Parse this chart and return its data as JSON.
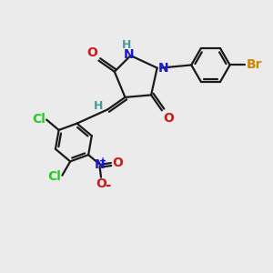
{
  "background_color": "#ebebeb",
  "bond_color": "#1a1a1a",
  "bond_width": 1.6,
  "atom_colors": {
    "C": "#1a1a1a",
    "H": "#4a9a9a",
    "N": "#1a1acc",
    "O": "#cc1a1a",
    "Cl": "#22cc22",
    "Br": "#cc8800"
  },
  "font_size_atoms": 10,
  "font_size_small": 8
}
